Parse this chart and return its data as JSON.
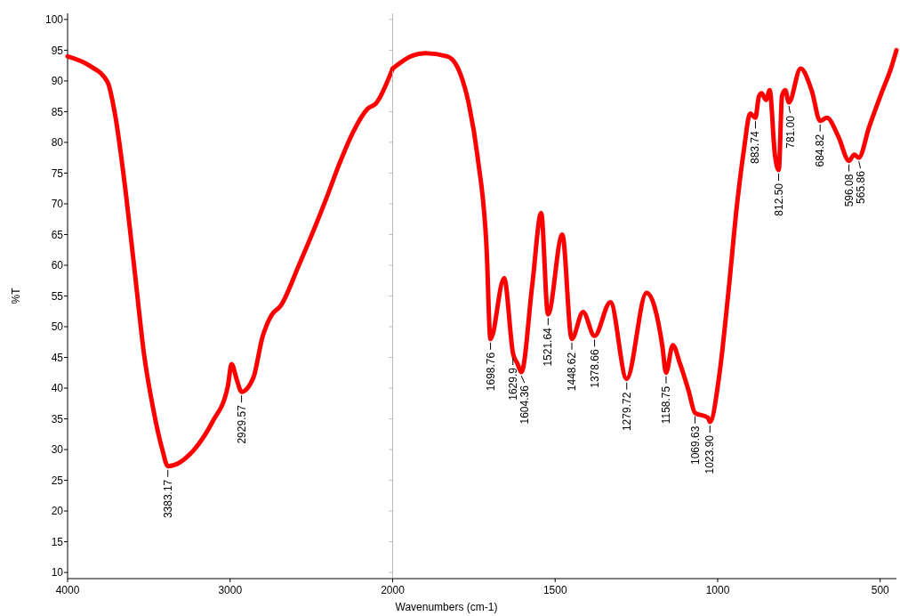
{
  "chart_data": [
    {
      "type": "line",
      "ylabel": "%T",
      "xlim": [
        4000,
        2000
      ],
      "xticks": [
        4000,
        3000,
        2000
      ],
      "ylim": [
        9,
        101
      ],
      "yticks": [
        10,
        15,
        20,
        25,
        30,
        35,
        40,
        45,
        50,
        55,
        60,
        65,
        70,
        75,
        80,
        85,
        90,
        95,
        100
      ],
      "grid": false,
      "marker": "none",
      "line_style": "solid",
      "series": [
        {
          "color": "#ff0000",
          "x": [
            4000,
            3866,
            3754,
            3709,
            3641,
            3585,
            3529,
            3473,
            3417,
            3383,
            3221,
            3109,
            3014,
            2991,
            2958,
            2930,
            2857,
            2801,
            2745,
            2689,
            2577,
            2409,
            2325,
            2241,
            2157,
            2101,
            2000
          ],
          "values": [
            94,
            92.5,
            89.8,
            84.7,
            71.6,
            58.5,
            45.4,
            36.6,
            30,
            27.3,
            30,
            34.5,
            40.3,
            43.9,
            41.3,
            39.4,
            41.7,
            48.3,
            51.9,
            53.4,
            60,
            70.8,
            76.7,
            81.8,
            85.4,
            86.4,
            92
          ]
        }
      ],
      "annotations": [
        {
          "text": "3383.17",
          "x": 3383.17,
          "y": 27.3
        },
        {
          "text": "2929.57",
          "x": 2929.57,
          "y": 39.4
        }
      ]
    },
    {
      "type": "line",
      "xlabel": "Wavenumbers (cm-1)",
      "xlim": [
        2000,
        450
      ],
      "xticks": [
        1500,
        1000,
        500
      ],
      "ylim": [
        9,
        101
      ],
      "yticks": [
        10,
        15,
        20,
        25,
        30,
        35,
        40,
        45,
        50,
        55,
        60,
        65,
        70,
        75,
        80,
        85,
        90,
        95,
        100
      ],
      "tick_labels": "x",
      "grid": false,
      "marker": "none",
      "line_style": "solid",
      "series": [
        {
          "color": "#ff0000",
          "x": [
            2000,
            1940,
            1900,
            1832,
            1792,
            1765,
            1738,
            1711,
            1699,
            1657,
            1629,
            1616,
            1604,
            1570,
            1543,
            1522,
            1478,
            1449,
            1414,
            1379,
            1330,
            1280,
            1219,
            1170,
            1159,
            1138,
            1116,
            1089,
            1070,
            1030,
            1024,
            994,
            967,
            940,
            919,
            900,
            884,
            873,
            865,
            851,
            840,
            824,
            812,
            802,
            792,
            781,
            745,
            710,
            685,
            664,
            629,
            596,
            580,
            566,
            534,
            494,
            467,
            450
          ],
          "values": [
            92,
            94.1,
            94.5,
            94,
            91.2,
            86.1,
            77.4,
            62.8,
            48,
            57.9,
            45.5,
            44,
            42.6,
            57,
            68.5,
            52,
            65,
            48,
            52.4,
            48.5,
            54,
            41.5,
            55.5,
            46.8,
            42.5,
            47,
            44,
            39.5,
            36,
            35.2,
            34.5,
            42.5,
            55.6,
            70.1,
            78.9,
            84.7,
            84,
            87.5,
            88,
            86.9,
            88.5,
            78,
            75.5,
            87.6,
            88.5,
            86.5,
            92,
            88.3,
            83.5,
            84,
            81,
            77,
            78,
            77.5,
            82.5,
            88.3,
            92,
            95
          ]
        }
      ],
      "annotations": [
        {
          "text": "1698.76",
          "x": 1698.76,
          "y": 48
        },
        {
          "text": "1629.9",
          "x": 1629.9,
          "y": 45.5
        },
        {
          "text": "1604.36",
          "x": 1604.36,
          "y": 42.6
        },
        {
          "text": "1521.64",
          "x": 1521.64,
          "y": 52
        },
        {
          "text": "1448.62",
          "x": 1448.62,
          "y": 48
        },
        {
          "text": "1378.66",
          "x": 1378.66,
          "y": 48.5
        },
        {
          "text": "1279.72",
          "x": 1279.72,
          "y": 41.5
        },
        {
          "text": "1158.75",
          "x": 1158.75,
          "y": 42.5
        },
        {
          "text": "1069.63",
          "x": 1069.63,
          "y": 36
        },
        {
          "text": "1023.90",
          "x": 1023.9,
          "y": 34.5
        },
        {
          "text": "883.74",
          "x": 883.74,
          "y": 84
        },
        {
          "text": "812.50",
          "x": 812.5,
          "y": 75.5
        },
        {
          "text": "781.00",
          "x": 781,
          "y": 86.5
        },
        {
          "text": "684.82",
          "x": 684.82,
          "y": 83.5
        },
        {
          "text": "596.08",
          "x": 596.08,
          "y": 77
        },
        {
          "text": "565.86",
          "x": 565.86,
          "y": 77.5
        }
      ]
    }
  ]
}
